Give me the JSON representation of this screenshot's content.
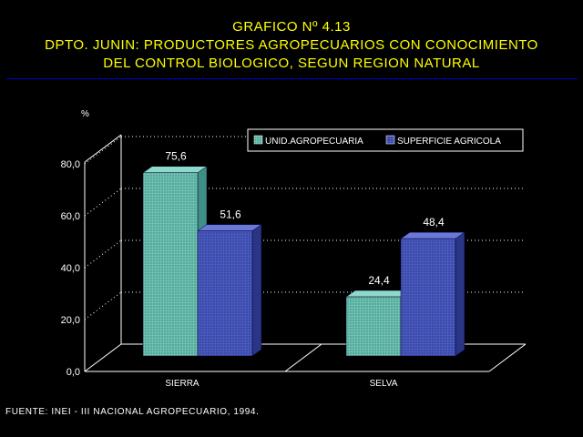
{
  "title": {
    "line1": "GRAFICO Nº 4.13",
    "line2": "DPTO. JUNIN: PRODUCTORES AGROPECUARIOS CON CONOCIMIENTO",
    "line3": "DEL CONTROL BIOLOGICO, SEGUN REGION NATURAL"
  },
  "source": "FUENTE: INEI - III NACIONAL AGROPECUARIO, 1994.",
  "colors": {
    "background": "#000000",
    "title": "#ffff00",
    "series1": "#5fb3a5",
    "series2": "#3c4aa8",
    "axis": "#ffffff"
  },
  "chart_data": {
    "type": "bar",
    "ylabel": "%",
    "categories": [
      "SIERRA",
      "SELVA"
    ],
    "series": [
      {
        "name": "UNID.AGROPECUARIA",
        "values": [
          75.6,
          24.4
        ],
        "labels": [
          "75,6",
          "24,4"
        ]
      },
      {
        "name": "SUPERFICIE AGRICOLA",
        "values": [
          51.6,
          48.4
        ],
        "labels": [
          "51,6",
          "48,4"
        ]
      }
    ],
    "ylim": [
      0,
      80
    ],
    "yticks": [
      "0,0",
      "20,0",
      "40,0",
      "60,0",
      "80,0"
    ],
    "grid": true,
    "legend": "top-right",
    "three_d": true
  }
}
